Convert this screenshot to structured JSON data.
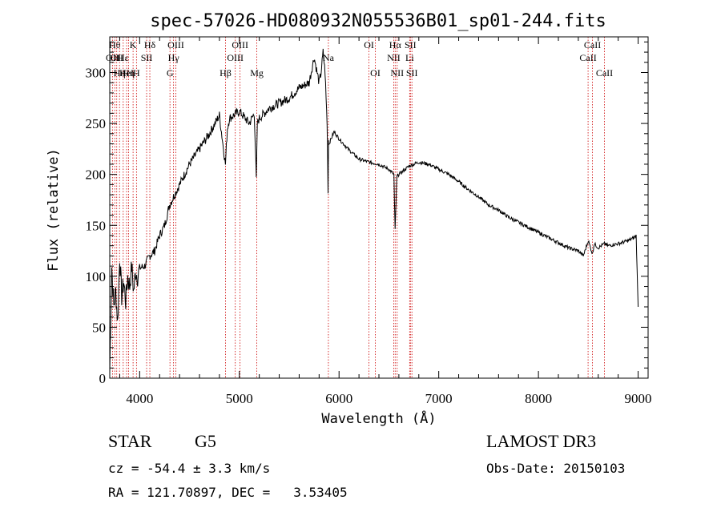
{
  "chart_data": {
    "type": "line",
    "title": "spec-57026-HD080932N055536B01_sp01-244.fits",
    "xlabel": "Wavelength (Å)",
    "ylabel": "Flux (relative)",
    "xlim": [
      3700,
      9100
    ],
    "ylim": [
      0,
      335
    ],
    "xticks": [
      4000,
      5000,
      6000,
      7000,
      8000,
      9000
    ],
    "yticks": [
      0,
      50,
      100,
      150,
      200,
      250,
      300
    ],
    "xtick_labels": [
      "4000",
      "5000",
      "6000",
      "7000",
      "8000",
      "9000"
    ],
    "ytick_labels": [
      "0",
      "50",
      "100",
      "150",
      "200",
      "250",
      "300"
    ],
    "series": [
      {
        "name": "spectrum",
        "x": [
          3700,
          3720,
          3740,
          3760,
          3780,
          3800,
          3820,
          3840,
          3860,
          3880,
          3900,
          3920,
          3940,
          3960,
          3980,
          4000,
          4050,
          4100,
          4150,
          4200,
          4250,
          4300,
          4350,
          4400,
          4450,
          4500,
          4600,
          4700,
          4800,
          4860,
          4880,
          4900,
          5000,
          5100,
          5150,
          5170,
          5180,
          5200,
          5300,
          5400,
          5500,
          5600,
          5700,
          5750,
          5800,
          5820,
          5840,
          5860,
          5880,
          5890,
          5895,
          5900,
          5950,
          6000,
          6100,
          6200,
          6300,
          6400,
          6500,
          6550,
          6562,
          6580,
          6600,
          6700,
          6800,
          6900,
          7000,
          7100,
          7200,
          7300,
          7400,
          7500,
          7600,
          7700,
          7800,
          7900,
          8000,
          8100,
          8200,
          8300,
          8400,
          8450,
          8500,
          8542,
          8560,
          8600,
          8662,
          8700,
          8800,
          8900,
          8960,
          8980,
          9000
        ],
        "y": [
          5,
          110,
          70,
          85,
          55,
          120,
          80,
          95,
          75,
          100,
          90,
          110,
          85,
          105,
          100,
          108,
          110,
          120,
          125,
          140,
          150,
          170,
          180,
          190,
          200,
          210,
          225,
          240,
          258,
          210,
          245,
          255,
          262,
          250,
          260,
          195,
          250,
          255,
          265,
          270,
          275,
          285,
          290,
          315,
          290,
          300,
          320,
          300,
          250,
          185,
          235,
          230,
          242,
          235,
          224,
          215,
          212,
          210,
          205,
          200,
          145,
          198,
          200,
          208,
          212,
          210,
          205,
          200,
          193,
          185,
          178,
          170,
          165,
          158,
          153,
          148,
          143,
          138,
          133,
          128,
          125,
          120,
          135,
          122,
          132,
          128,
          132,
          130,
          132,
          135,
          138,
          140,
          70
        ]
      }
    ],
    "lines": [
      {
        "wave": 3727,
        "labels": [
          {
            "text": "OII",
            "row": 2
          }
        ]
      },
      {
        "wave": 3750,
        "labels": [
          {
            "text": "Hθ",
            "row": 1
          }
        ]
      },
      {
        "wave": 3770,
        "labels": [
          {
            "text": "OII",
            "row": 2
          }
        ]
      },
      {
        "wave": 3798,
        "labels": [
          {
            "text": "Hη",
            "row": 3
          }
        ]
      },
      {
        "wave": 3835,
        "labels": [
          {
            "text": "Hε",
            "row": 2
          }
        ]
      },
      {
        "wave": 3869,
        "labels": [
          {
            "text": "HeI",
            "row": 3
          }
        ]
      },
      {
        "wave": 3889,
        "labels": [
          {
            "text": "Hη",
            "row": 3
          }
        ]
      },
      {
        "wave": 3934,
        "labels": [
          {
            "text": "K",
            "row": 1
          }
        ]
      },
      {
        "wave": 3968,
        "labels": [
          {
            "text": "H",
            "row": 3
          }
        ]
      },
      {
        "wave": 4070,
        "labels": [
          {
            "text": "SII",
            "row": 2
          }
        ]
      },
      {
        "wave": 4102,
        "labels": [
          {
            "text": "Hδ",
            "row": 1
          }
        ]
      },
      {
        "wave": 4304,
        "labels": [
          {
            "text": "G",
            "row": 3
          }
        ]
      },
      {
        "wave": 4340,
        "labels": [
          {
            "text": "Hγ",
            "row": 2
          }
        ]
      },
      {
        "wave": 4363,
        "labels": [
          {
            "text": "OIII",
            "row": 1
          }
        ]
      },
      {
        "wave": 4861,
        "labels": [
          {
            "text": "Hβ",
            "row": 3
          }
        ]
      },
      {
        "wave": 4959,
        "labels": [
          {
            "text": "OIII",
            "row": 2
          }
        ]
      },
      {
        "wave": 5007,
        "labels": [
          {
            "text": "OIII",
            "row": 1
          }
        ]
      },
      {
        "wave": 5175,
        "labels": [
          {
            "text": "Mg",
            "row": 3
          }
        ]
      },
      {
        "wave": 5893,
        "labels": [
          {
            "text": "Na",
            "row": 2
          }
        ]
      },
      {
        "wave": 6300,
        "labels": [
          {
            "text": "OI",
            "row": 1
          }
        ]
      },
      {
        "wave": 6364,
        "labels": [
          {
            "text": "OI",
            "row": 3
          }
        ]
      },
      {
        "wave": 6548,
        "labels": [
          {
            "text": "NII",
            "row": 2
          }
        ]
      },
      {
        "wave": 6563,
        "labels": [
          {
            "text": "Hα",
            "row": 1
          }
        ]
      },
      {
        "wave": 6583,
        "labels": [
          {
            "text": "NII",
            "row": 3
          }
        ]
      },
      {
        "wave": 6708,
        "labels": [
          {
            "text": "Li",
            "row": 2
          }
        ]
      },
      {
        "wave": 6716,
        "labels": [
          {
            "text": "SII",
            "row": 1
          }
        ]
      },
      {
        "wave": 6731,
        "labels": [
          {
            "text": "SII",
            "row": 3
          }
        ]
      },
      {
        "wave": 8498,
        "labels": [
          {
            "text": "CaII",
            "row": 2
          }
        ]
      },
      {
        "wave": 8542,
        "labels": [
          {
            "text": "CaII",
            "row": 1
          }
        ]
      },
      {
        "wave": 8662,
        "labels": [
          {
            "text": "CaII",
            "row": 3
          }
        ]
      }
    ]
  },
  "footer": {
    "object_type": "STAR",
    "subclass": "G5",
    "survey": "LAMOST DR3",
    "redshift_text": "cz = -54.4 ± 3.3 km/s",
    "obs_date": "Obs-Date: 20150103",
    "coords": "RA = 121.70897, DEC =   3.53405"
  }
}
